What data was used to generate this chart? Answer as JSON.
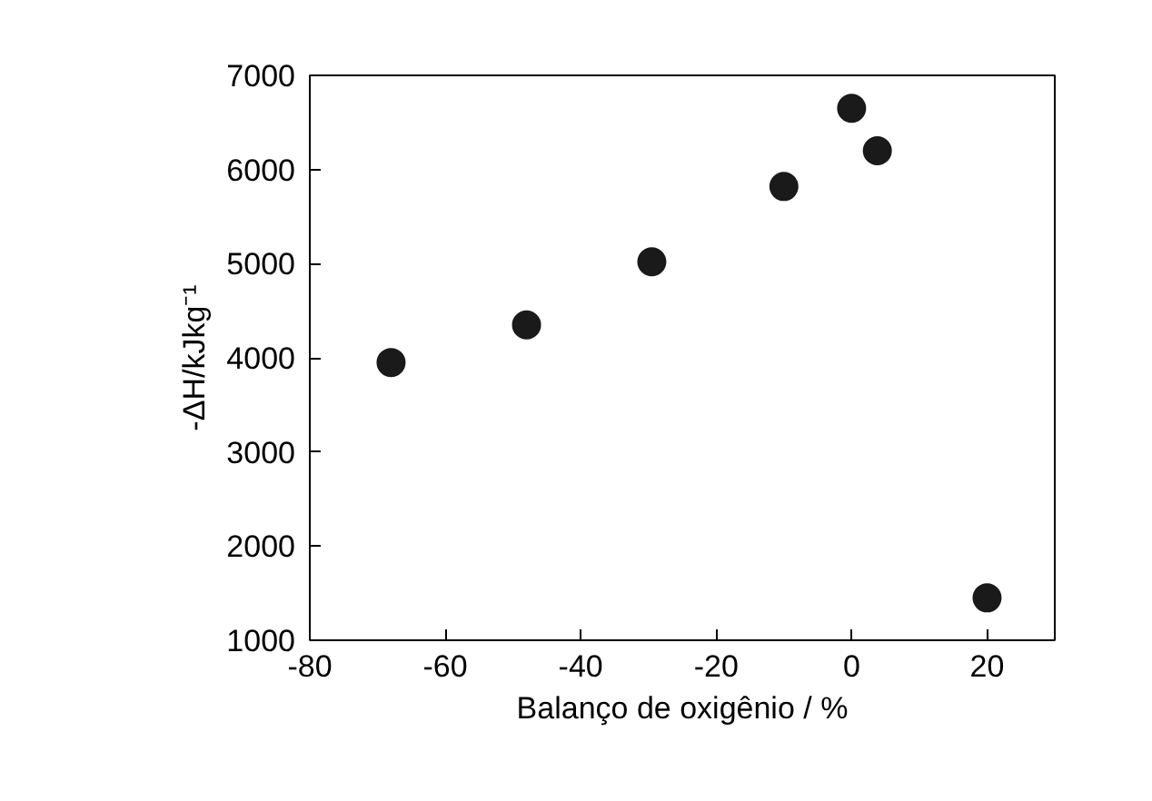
{
  "chart_data": {
    "type": "scatter",
    "xlabel": "Balanço de oxigênio / %",
    "ylabel": "-ΔH/kJkg⁻¹",
    "x": [
      -68,
      -48,
      -29.5,
      -10,
      0,
      3.8,
      20
    ],
    "series": [
      {
        "color": "#1a1a1a",
        "values": [
          3950,
          4350,
          5020,
          5820,
          6650,
          6200,
          1450
        ]
      }
    ],
    "xlim": [
      -80,
      30
    ],
    "ylim": [
      1000,
      7000
    ],
    "xticks": [
      -80,
      -60,
      -40,
      -20,
      0,
      20
    ],
    "yticks": [
      1000,
      2000,
      3000,
      4000,
      5000,
      6000,
      7000
    ],
    "grid": false,
    "marker": "circle"
  }
}
